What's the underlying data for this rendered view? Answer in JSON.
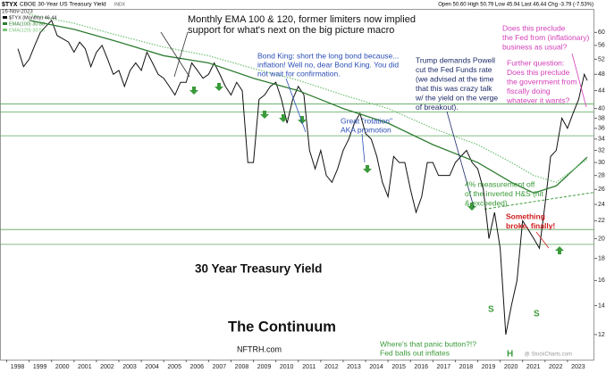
{
  "chart_data": {
    "type": "line",
    "symbol": "$TYX",
    "title": "CBOE 30-Year US Treasury Yield",
    "exchange": "INDX",
    "date": "16-Nov-2023",
    "quote": "Open 50.60  High 50.79  Low 45.94  Last 46.44  Chg -3.79 (-7.53%)",
    "watermark": "@ StockCharts.com",
    "log_scale": true,
    "xlim": [
      1997.7,
      2024.2
    ],
    "xticks": [
      1998,
      1999,
      2000,
      2001,
      2002,
      2003,
      2004,
      2005,
      2006,
      2007,
      2008,
      2009,
      2010,
      2011,
      2012,
      2013,
      2014,
      2015,
      2016,
      2017,
      2018,
      2019,
      2020,
      2021,
      2022,
      2023
    ],
    "ylim": [
      10.5,
      68
    ],
    "yticks": [
      12,
      14,
      16,
      18,
      20,
      22,
      24,
      26,
      28,
      30,
      32,
      34,
      36,
      38,
      40,
      44,
      48,
      52,
      56,
      60
    ],
    "grid": false,
    "series": [
      {
        "name": "$TYX (Monthly) 46.44",
        "color": "#111111",
        "x": [
          1998.5,
          1998.75,
          1999,
          1999.25,
          1999.5,
          1999.75,
          2000,
          2000.25,
          2000.5,
          2000.75,
          2001,
          2001.25,
          2001.5,
          2001.75,
          2002,
          2002.25,
          2002.5,
          2002.75,
          2003,
          2003.25,
          2003.5,
          2003.75,
          2004,
          2004.25,
          2004.5,
          2004.75,
          2005,
          2005.25,
          2005.5,
          2005.75,
          2006,
          2006.25,
          2006.5,
          2006.75,
          2007,
          2007.25,
          2007.5,
          2007.75,
          2008,
          2008.25,
          2008.5,
          2008.75,
          2009,
          2009.25,
          2009.5,
          2009.75,
          2010,
          2010.25,
          2010.5,
          2010.75,
          2011,
          2011.25,
          2011.5,
          2011.75,
          2012,
          2012.25,
          2012.5,
          2012.75,
          2013,
          2013.25,
          2013.5,
          2013.75,
          2014,
          2014.25,
          2014.5,
          2014.75,
          2015,
          2015.25,
          2015.5,
          2015.75,
          2016,
          2016.25,
          2016.5,
          2016.75,
          2017,
          2017.25,
          2017.5,
          2017.75,
          2018,
          2018.25,
          2018.5,
          2018.75,
          2019,
          2019.25,
          2019.5,
          2019.75,
          2020,
          2020.25,
          2020.5,
          2020.75,
          2021,
          2021.25,
          2021.5,
          2021.75,
          2022,
          2022.25,
          2022.5,
          2022.75,
          2023,
          2023.25,
          2023.5,
          2023.75,
          2023.88
        ],
        "values": [
          55,
          50,
          52,
          56,
          60,
          62,
          64,
          59,
          58,
          57,
          54,
          57,
          55,
          50,
          54,
          56,
          52,
          48,
          49,
          45,
          49,
          51,
          49,
          54,
          51,
          48,
          47,
          45,
          43,
          46,
          46,
          51,
          49,
          47,
          48,
          51,
          48,
          45,
          43,
          46,
          44,
          30,
          30,
          42,
          43,
          45,
          46,
          42,
          37,
          42,
          45,
          43,
          32,
          29,
          32,
          28,
          27,
          29,
          32,
          34,
          37,
          39,
          35,
          34,
          31,
          27,
          25,
          31,
          30,
          30,
          26,
          23,
          25,
          30,
          30,
          28,
          28,
          28,
          30,
          31,
          32,
          30,
          29,
          26,
          20,
          23,
          19,
          12,
          14,
          16,
          22,
          21,
          20,
          19,
          24,
          31,
          32,
          38,
          36,
          39,
          42,
          48,
          46.44
        ]
      },
      {
        "name": "EMA(100) 30.88",
        "color": "#2e7d32",
        "dash": false,
        "x": [
          1999,
          2001,
          2003,
          2005,
          2007,
          2009,
          2011,
          2013,
          2015,
          2017,
          2019,
          2020.5,
          2021.5,
          2022.5,
          2023.88
        ],
        "values": [
          64,
          61,
          57,
          53,
          51,
          47,
          44,
          40,
          37,
          33,
          30,
          27,
          25.5,
          26.5,
          30.88
        ]
      },
      {
        "name": "EMA(120) 30.53",
        "color": "#7cc47f",
        "dash": true,
        "x": [
          1999,
          2001,
          2003,
          2005,
          2007,
          2009,
          2011,
          2013,
          2015,
          2017,
          2019,
          2020.5,
          2021.5,
          2022.5,
          2023.88
        ],
        "values": [
          66,
          63,
          59,
          55.5,
          53,
          49.5,
          46.5,
          43,
          40,
          36,
          33,
          30,
          28,
          27,
          30.53
        ]
      }
    ],
    "levels": [
      {
        "value": 41,
        "color": "#5aa55a"
      },
      {
        "value": 39.3,
        "color": "#5aa55a"
      },
      {
        "value": 34.6,
        "color": "#5aa55a"
      },
      {
        "value": 21,
        "color": "#5aa55a"
      },
      {
        "value": 19.4,
        "color": "#5aa55a"
      }
    ],
    "trendline": {
      "color": "#3a9a3a",
      "x": [
        2019.3,
        2024.2
      ],
      "values": [
        23.4,
        25.6
      ]
    },
    "annotations": [
      {
        "color": "#111111",
        "lines": [
          "Monthly EMA 100 & 120, former limiters now implied",
          "support for what's next on the big picture macro"
        ]
      },
      {
        "color": "#2b4fb5",
        "lines": [
          "Bond King: short the long bond because...",
          "inflation! Well no, dear Bond King. You did",
          "not wait for confirmation."
        ]
      },
      {
        "color": "#1f2d6b",
        "lines": [
          "Trump demands Powell",
          "cut the Fed Funds rate",
          "(we advised at the time",
          "that this was crazy talk",
          "w/ the yield on the verge",
          "of breakout)."
        ]
      },
      {
        "color": "#d43fb8",
        "lines": [
          "Does this preclude",
          "the Fed from (inflationary)",
          "business as usual?"
        ]
      },
      {
        "color": "#d43fb8",
        "lines": [
          "Further question:",
          "Does this preclude",
          "the government from",
          "fiscally doing",
          "whatever it wants?"
        ]
      },
      {
        "color": "#2b4fb5",
        "lines": [
          "Great \"rotation\"",
          "AKA promotion"
        ]
      },
      {
        "color": "#3a9a3a",
        "lines": [
          "4% measurement off",
          "of the inverted H&S (hit",
          "& exceeded)"
        ]
      },
      {
        "color": "#d01a1a",
        "lines": [
          "Something",
          "broke, finally!"
        ]
      },
      {
        "color": "#111111",
        "lines": [
          "30 Year Treasury Yield"
        ]
      },
      {
        "color": "#111111",
        "lines": [
          "The Continuum"
        ]
      },
      {
        "color": "#111111",
        "lines": [
          "NFTRH.com"
        ]
      },
      {
        "color": "#3a9a3a",
        "lines": [
          "Where's that panic button?!?",
          "Fed balls out inflates"
        ]
      },
      {
        "color": "#3a9a3a",
        "lines": [
          "S"
        ]
      },
      {
        "color": "#3a9a3a",
        "lines": [
          "S"
        ]
      },
      {
        "color": "#3a9a3a",
        "lines": [
          "H"
        ]
      }
    ]
  }
}
